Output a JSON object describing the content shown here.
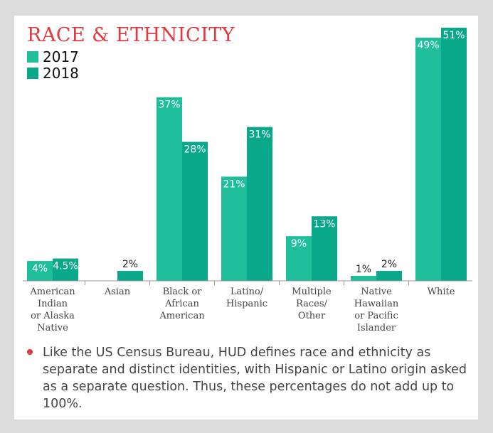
{
  "colors": {
    "series_2017": "#1fbf9c",
    "series_2018": "#0aa88a",
    "accent": "#e03a3e",
    "text": "#333333"
  },
  "chart_data": {
    "type": "bar",
    "title": "RACE & ETHNICITY",
    "categories": [
      [
        "American",
        "Indian",
        "or Alaska",
        "Native"
      ],
      [
        "Asian"
      ],
      [
        "Black or",
        "African",
        "American"
      ],
      [
        "Latino/",
        "Hispanic"
      ],
      [
        "Multiple",
        "Races/",
        "Other"
      ],
      [
        "Native",
        "Hawaiian",
        "or Pacific",
        "Islander"
      ],
      [
        "White"
      ]
    ],
    "series": [
      {
        "name": "2017",
        "values": [
          4,
          null,
          37,
          21,
          9,
          1,
          49
        ],
        "labels": [
          "4%",
          "",
          "37%",
          "21%",
          "9%",
          "1%",
          "49%"
        ]
      },
      {
        "name": "2018",
        "values": [
          4.5,
          2,
          28,
          31,
          13,
          2,
          51
        ],
        "labels": [
          "4.5%",
          "2%",
          "28%",
          "31%",
          "13%",
          "2%",
          "51%"
        ]
      }
    ],
    "ylim": [
      0,
      51
    ],
    "grid": false,
    "legend": "top-left"
  },
  "note": {
    "text": "Like the US Census Bureau, HUD defines race and ethnicity as separate and distinct identities, with Hispanic or Latino origin asked as a separate question. Thus, these percentages do not add up to 100%."
  }
}
